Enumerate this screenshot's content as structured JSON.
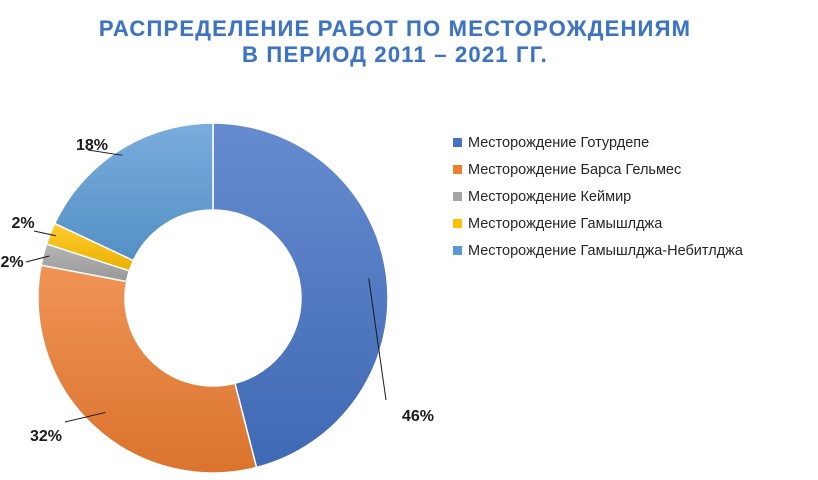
{
  "title": {
    "line1": "РАСПРЕДЕЛЕНИЕ РАБОТ ПО МЕСТОРОЖДЕНИЯМ",
    "line2": "В ПЕРИОД 2011 – 2021 ГГ."
  },
  "chart_data": {
    "type": "pie",
    "style": "donut",
    "title": "РАСПРЕДЕЛЕНИЕ РАБОТ ПО МЕСТОРОЖДЕНИЯМ В ПЕРИОД 2011 – 2021 ГГ.",
    "legend_position": "right",
    "unit": "%",
    "series": [
      {
        "name": "Месторождение Готурдепе",
        "value": 46,
        "label": "46%",
        "color": "#4472c4"
      },
      {
        "name": "Месторождение Барса Гельмес",
        "value": 32,
        "label": "32%",
        "color": "#ed7d31"
      },
      {
        "name": "Месторождение Кеймир",
        "value": 2,
        "label": "2%",
        "color": "#a5a5a5"
      },
      {
        "name": "Месторождение Гамышлджа",
        "value": 2,
        "label": "2%",
        "color": "#ffc000"
      },
      {
        "name": "Месторождение Гамышлджа-Небитлджа",
        "value": 18,
        "label": "18%",
        "color": "#5b9bd5"
      }
    ]
  }
}
